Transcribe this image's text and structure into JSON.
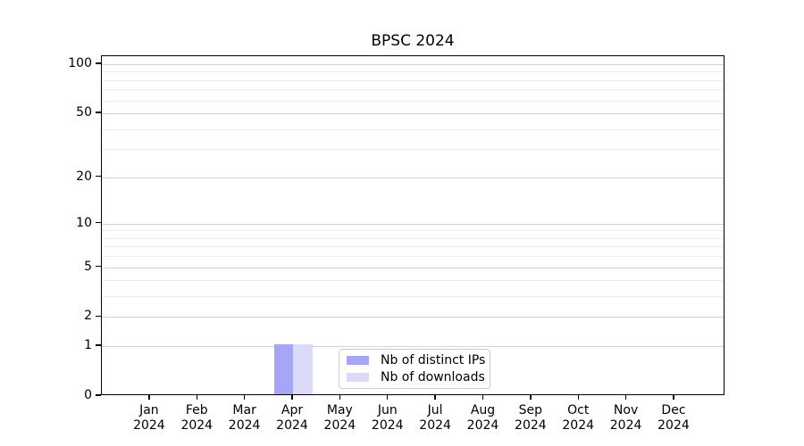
{
  "chart_data": {
    "type": "bar",
    "title": "BPSC 2024",
    "xlabel": "",
    "ylabel": "",
    "x": {
      "months": [
        "Jan",
        "Feb",
        "Mar",
        "Apr",
        "May",
        "Jun",
        "Jul",
        "Aug",
        "Sep",
        "Oct",
        "Nov",
        "Dec"
      ],
      "year_line": "2024"
    },
    "series": [
      {
        "name": "Nb of distinct IPs",
        "color": "#a6a6f4",
        "values": [
          0,
          0,
          0,
          1,
          0,
          0,
          0,
          0,
          0,
          0,
          0,
          0
        ]
      },
      {
        "name": "Nb of downloads",
        "color": "#dbdbf9",
        "values": [
          0,
          0,
          0,
          1,
          0,
          0,
          0,
          0,
          0,
          0,
          0,
          0
        ]
      }
    ],
    "yaxis": {
      "scale": "log1p",
      "ymin": 0,
      "ymax": 112,
      "tick_labels": [
        "100",
        "50",
        "20",
        "10",
        "5",
        "2",
        "1",
        "0"
      ],
      "tick_values": [
        100,
        50,
        20,
        10,
        5,
        2,
        1,
        0
      ],
      "minor_gridlines": [
        90,
        80,
        70,
        60,
        40,
        30,
        9,
        8,
        7,
        6,
        4,
        3
      ]
    },
    "grid": {
      "major_color": "#d2d2d2",
      "minor_color": "#ececec",
      "grid_on": true
    },
    "legend": {
      "position": "lower center",
      "border_color": "#cccccc",
      "entries": [
        "Nb of distinct IPs",
        "Nb of downloads"
      ]
    }
  }
}
